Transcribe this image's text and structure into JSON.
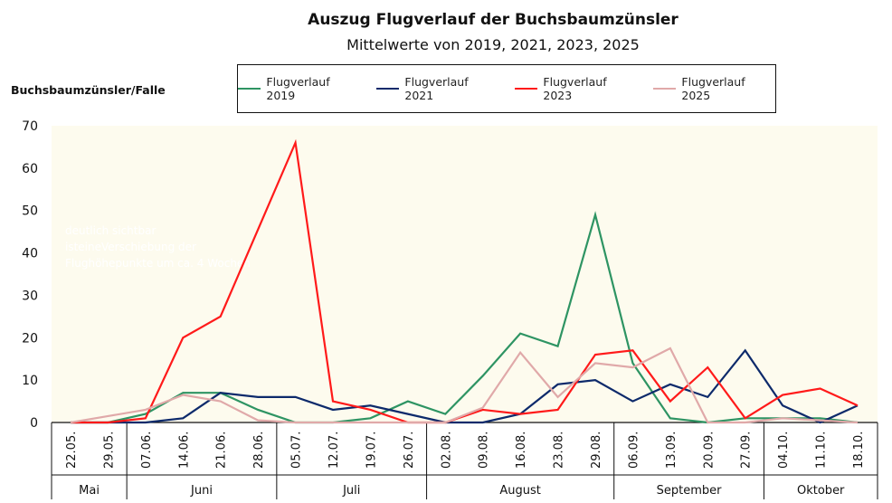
{
  "chart_data": {
    "type": "line",
    "title": "Auszug Flugverlauf der Buchsbaumzünsler",
    "subtitle": "Mittelwerte von 2019, 2021, 2023, 2025",
    "ylabel": "Buchsbaumzünsler/Falle",
    "ylim": [
      0,
      70
    ],
    "yticks": [
      0,
      10,
      20,
      30,
      40,
      50,
      60,
      70
    ],
    "x": [
      "22.05.",
      "29.05.",
      "07.06.",
      "14.06.",
      "21.06.",
      "28.06.",
      "05.07.",
      "12.07.",
      "19.07.",
      "26.07.",
      "02.08.",
      "09.08.",
      "16.08.",
      "23.08.",
      "29.08.",
      "06.09.",
      "13.09.",
      "20.09.",
      "27.09.",
      "04.10.",
      "11.10.",
      "18.10."
    ],
    "months": [
      {
        "label": "Mai",
        "span": 2
      },
      {
        "label": "Juni",
        "span": 4
      },
      {
        "label": "Juli",
        "span": 4
      },
      {
        "label": "August",
        "span": 5
      },
      {
        "label": "September",
        "span": 4
      },
      {
        "label": "Oktober",
        "span": 3
      }
    ],
    "legend_position": "top",
    "grid": false,
    "background": "#fdfbee",
    "annotation": [
      "deutlich sichtbar",
      "isteineVerschiebung der",
      "Flughöhepunkte um ca. 4 Wochen"
    ],
    "series": [
      {
        "name": "Flugverlauf 2019",
        "color": "#2e9463",
        "values": [
          0,
          0,
          2,
          7,
          7,
          3,
          0,
          0,
          1,
          5,
          2,
          11,
          21,
          18,
          49,
          14,
          1,
          0,
          1,
          1,
          1,
          0
        ]
      },
      {
        "name": "Flugverlauf 2021",
        "color": "#0d2a6b",
        "values": [
          0,
          0,
          0,
          1,
          7,
          6,
          6,
          3,
          4,
          2,
          0,
          0,
          2,
          9,
          10,
          5,
          9,
          6,
          17,
          4,
          0,
          4
        ]
      },
      {
        "name": "Flugverlauf 2023",
        "color": "#ff1a1a",
        "values": [
          0,
          0,
          1,
          20,
          25,
          45.5,
          66,
          5,
          3,
          0,
          0,
          3,
          2,
          3,
          16,
          17,
          5,
          13,
          1,
          6.5,
          8,
          4
        ]
      },
      {
        "name": "Flugverlauf 2025",
        "color": "#e0a9a9",
        "values": [
          0,
          1.5,
          3,
          6.5,
          5,
          0.5,
          0,
          0,
          0,
          0,
          0,
          3.5,
          16.5,
          6,
          14,
          13,
          17.5,
          0,
          0,
          1,
          0.5,
          0
        ]
      }
    ]
  }
}
